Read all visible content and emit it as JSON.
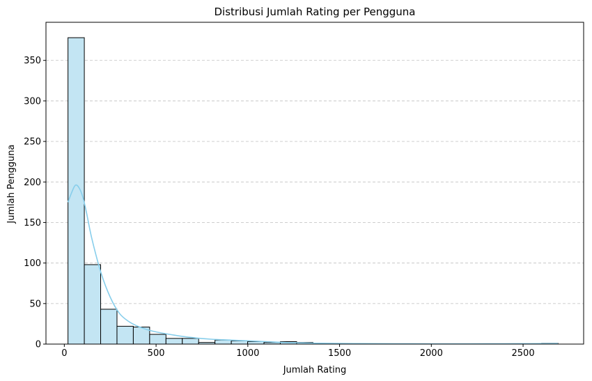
{
  "chart_data": {
    "type": "bar",
    "title": "Distribusi Jumlah Rating per Pengguna",
    "xlabel": "Jumlah Rating",
    "ylabel": "Jumlah Pengguna",
    "xlim": [
      -100,
      2830
    ],
    "ylim": [
      0,
      397
    ],
    "xticks": [
      0,
      500,
      1000,
      1500,
      2000,
      2500
    ],
    "yticks": [
      0,
      50,
      100,
      150,
      200,
      250,
      300,
      350
    ],
    "grid": "y-dashed",
    "bar_fill": "#c3e5f3",
    "bar_edge": "#000000",
    "kde_color": "#87ceeb",
    "bins": [
      {
        "x0": 20,
        "x1": 109,
        "count": 378
      },
      {
        "x0": 109,
        "x1": 198,
        "count": 98
      },
      {
        "x0": 198,
        "x1": 287,
        "count": 43
      },
      {
        "x0": 287,
        "x1": 376,
        "count": 22
      },
      {
        "x0": 376,
        "x1": 465,
        "count": 21
      },
      {
        "x0": 465,
        "x1": 554,
        "count": 12
      },
      {
        "x0": 554,
        "x1": 643,
        "count": 7
      },
      {
        "x0": 643,
        "x1": 732,
        "count": 7
      },
      {
        "x0": 732,
        "x1": 821,
        "count": 2
      },
      {
        "x0": 821,
        "x1": 910,
        "count": 5
      },
      {
        "x0": 910,
        "x1": 999,
        "count": 4
      },
      {
        "x0": 999,
        "x1": 1088,
        "count": 3
      },
      {
        "x0": 1088,
        "x1": 1177,
        "count": 2
      },
      {
        "x0": 1177,
        "x1": 1266,
        "count": 3
      },
      {
        "x0": 1266,
        "x1": 1355,
        "count": 2
      },
      {
        "x0": 1355,
        "x1": 1444,
        "count": 0
      },
      {
        "x0": 1444,
        "x1": 1533,
        "count": 0
      },
      {
        "x0": 1533,
        "x1": 1622,
        "count": 0
      },
      {
        "x0": 1622,
        "x1": 1711,
        "count": 0
      },
      {
        "x0": 1711,
        "x1": 1800,
        "count": 0
      },
      {
        "x0": 1800,
        "x1": 1889,
        "count": 0
      },
      {
        "x0": 1889,
        "x1": 1978,
        "count": 0
      },
      {
        "x0": 1978,
        "x1": 2067,
        "count": 0
      },
      {
        "x0": 2067,
        "x1": 2156,
        "count": 0
      },
      {
        "x0": 2156,
        "x1": 2245,
        "count": 0
      },
      {
        "x0": 2245,
        "x1": 2334,
        "count": 0
      },
      {
        "x0": 2334,
        "x1": 2423,
        "count": 0
      },
      {
        "x0": 2423,
        "x1": 2512,
        "count": 0
      },
      {
        "x0": 2512,
        "x1": 2601,
        "count": 0
      },
      {
        "x0": 2601,
        "x1": 2690,
        "count": 1
      }
    ],
    "kde": [
      [
        20,
        175
      ],
      [
        40,
        187
      ],
      [
        60,
        196
      ],
      [
        80,
        193
      ],
      [
        100,
        182
      ],
      [
        120,
        163
      ],
      [
        150,
        130
      ],
      [
        200,
        88
      ],
      [
        250,
        58
      ],
      [
        300,
        38
      ],
      [
        350,
        28
      ],
      [
        400,
        22
      ],
      [
        450,
        18
      ],
      [
        500,
        15
      ],
      [
        600,
        11
      ],
      [
        700,
        8
      ],
      [
        800,
        6
      ],
      [
        900,
        5
      ],
      [
        1000,
        4
      ],
      [
        1100,
        3
      ],
      [
        1200,
        2
      ],
      [
        1300,
        1.5
      ],
      [
        1400,
        1
      ],
      [
        1600,
        0.6
      ],
      [
        1800,
        0.4
      ],
      [
        2000,
        0.3
      ],
      [
        2200,
        0.3
      ],
      [
        2400,
        0.4
      ],
      [
        2600,
        0.6
      ],
      [
        2690,
        0.7
      ]
    ]
  }
}
